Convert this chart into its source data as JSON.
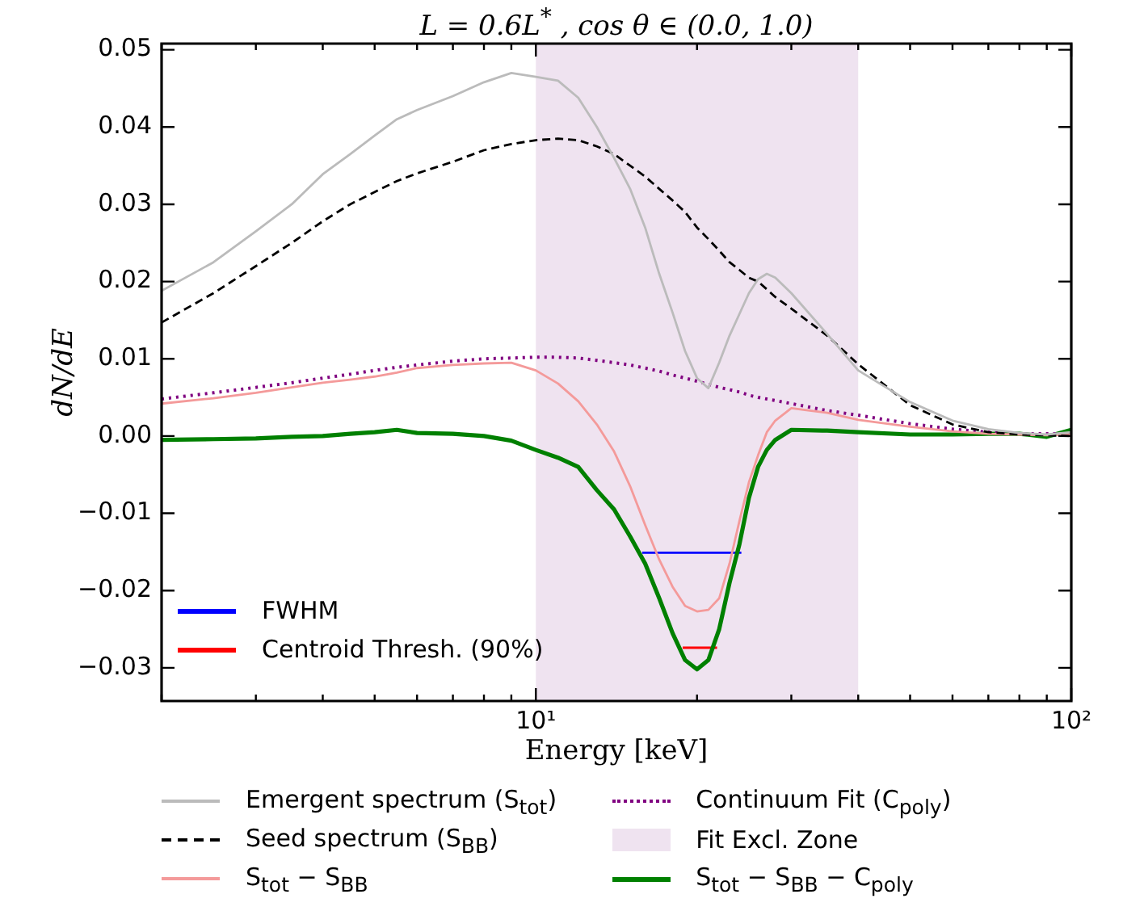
{
  "chart_data": {
    "type": "line",
    "title": "L = 0.6L$^{*}$ ,  cos θ ∈ (0.0, 1.0)",
    "xlabel": "Energy [keV]",
    "ylabel": "dN/dE",
    "log": "x",
    "grid": false,
    "legend": "bottom",
    "marker": "none",
    "xlim": [
      2,
      100
    ],
    "ylim": [
      -0.0343,
      0.0508
    ],
    "xticks": [
      {
        "value": 2,
        "label": null
      },
      {
        "value": 3,
        "label": null
      },
      {
        "value": 4,
        "label": null
      },
      {
        "value": 5,
        "label": null
      },
      {
        "value": 6,
        "label": null
      },
      {
        "value": 7,
        "label": null
      },
      {
        "value": 8,
        "label": null
      },
      {
        "value": 9,
        "label": null
      },
      {
        "value": 10,
        "label": "10¹"
      },
      {
        "value": 20,
        "label": null
      },
      {
        "value": 30,
        "label": null
      },
      {
        "value": 40,
        "label": null
      },
      {
        "value": 50,
        "label": null
      },
      {
        "value": 60,
        "label": null
      },
      {
        "value": 70,
        "label": null
      },
      {
        "value": 80,
        "label": null
      },
      {
        "value": 90,
        "label": null
      },
      {
        "value": 100,
        "label": "10²"
      }
    ],
    "yticks": [
      {
        "value": -0.03,
        "label": "−0.03"
      },
      {
        "value": -0.02,
        "label": "−0.02"
      },
      {
        "value": -0.01,
        "label": "−0.01"
      },
      {
        "value": 0,
        "label": "0.00"
      },
      {
        "value": 0.01,
        "label": "0.01"
      },
      {
        "value": 0.02,
        "label": "0.02"
      },
      {
        "value": 0.03,
        "label": "0.03"
      },
      {
        "value": 0.04,
        "label": "0.04"
      },
      {
        "value": 0.05,
        "label": "0.05"
      }
    ],
    "x": [
      2,
      2.5,
      3,
      3.5,
      4,
      4.5,
      5,
      5.5,
      6,
      7,
      8,
      9,
      10,
      11,
      12,
      13,
      14,
      15,
      16,
      17,
      18,
      19,
      20,
      21,
      22,
      23,
      24,
      25,
      26,
      27,
      28,
      30,
      35,
      40,
      50,
      60,
      70,
      80,
      90,
      100
    ],
    "bands": [
      {
        "axis": "x",
        "from": 10,
        "to": 40,
        "label": "Fit Excl. Zone",
        "color": "#efe3f0"
      }
    ],
    "series": [
      {
        "name": "Emergent spectrum (S$_{tot}$)",
        "color": "#bbbbbb",
        "line_style": "solid",
        "values": [
          0.0188,
          0.0225,
          0.0265,
          0.03,
          0.0339,
          0.0365,
          0.0389,
          0.041,
          0.0422,
          0.044,
          0.0458,
          0.047,
          0.0465,
          0.046,
          0.0438,
          0.04,
          0.036,
          0.032,
          0.027,
          0.021,
          0.016,
          0.011,
          0.0075,
          0.0062,
          0.0095,
          0.013,
          0.0158,
          0.0185,
          0.0203,
          0.021,
          0.0205,
          0.0185,
          0.0132,
          0.0085,
          0.0044,
          0.002,
          0.0009,
          0.0004,
          0.0002,
          0.0005
        ]
      },
      {
        "name": "Seed spectrum (S$_{BB}$)",
        "color": "#000000",
        "line_style": "dashed",
        "values": [
          0.0147,
          0.0185,
          0.022,
          0.025,
          0.0278,
          0.03,
          0.0316,
          0.033,
          0.034,
          0.0355,
          0.037,
          0.0378,
          0.0383,
          0.0385,
          0.0383,
          0.0375,
          0.0365,
          0.035,
          0.0336,
          0.032,
          0.0305,
          0.029,
          0.027,
          0.0255,
          0.024,
          0.0225,
          0.0215,
          0.0205,
          0.02,
          0.019,
          0.018,
          0.0165,
          0.013,
          0.0093,
          0.004,
          0.0015,
          0.0005,
          0.0002,
          0.0001,
          0
        ]
      },
      {
        "name": "S$_{tot}$ − S$_{BB}$",
        "color": "#f49a9a",
        "line_style": "solid",
        "values": [
          0.0042,
          0.0049,
          0.0056,
          0.0063,
          0.0069,
          0.0073,
          0.0077,
          0.0082,
          0.0088,
          0.0092,
          0.0094,
          0.0095,
          0.0085,
          0.0068,
          0.0045,
          0.0015,
          -0.002,
          -0.0065,
          -0.0115,
          -0.016,
          -0.0195,
          -0.022,
          -0.0227,
          -0.0225,
          -0.021,
          -0.0165,
          -0.011,
          -0.006,
          -0.0025,
          0.0005,
          0.002,
          0.0036,
          0.003,
          0.0021,
          0.0012,
          0.0006,
          0.0003,
          0.0002,
          0.0001,
          0.0002
        ]
      },
      {
        "name": "Continuum Fit (C$_{poly}$)",
        "color": "#800080",
        "line_style": "dotted",
        "values": [
          0.0048,
          0.0056,
          0.0063,
          0.0069,
          0.0075,
          0.008,
          0.0085,
          0.0089,
          0.0092,
          0.0097,
          0.01,
          0.0101,
          0.0102,
          0.0102,
          0.0101,
          0.0098,
          0.0095,
          0.0092,
          0.0088,
          0.0084,
          0.0079,
          0.0075,
          0.0071,
          0.0067,
          0.0063,
          0.006,
          0.0057,
          0.0053,
          0.005,
          0.0048,
          0.0046,
          0.0042,
          0.0033,
          0.0027,
          0.0016,
          0.0009,
          0.0005,
          0.0003,
          0.0003,
          0.0003
        ]
      },
      {
        "name": "S$_{tot}$ − S$_{BB}$ − C$_{poly}$",
        "color": "#008000",
        "line_style": "solid",
        "values": [
          -0.0005,
          -0.0004,
          -0.0003,
          -0.0001,
          0,
          0.0003,
          0.0005,
          0.0008,
          0.0004,
          0.0003,
          0,
          -0.0006,
          -0.0018,
          -0.0028,
          -0.004,
          -0.007,
          -0.0095,
          -0.013,
          -0.0165,
          -0.021,
          -0.0255,
          -0.029,
          -0.0302,
          -0.029,
          -0.025,
          -0.019,
          -0.014,
          -0.008,
          -0.004,
          -0.0018,
          -0.0005,
          0.0008,
          0.0007,
          0.0005,
          0.0002,
          0.0002,
          0.0003,
          0.0003,
          -0.0001,
          0.0008
        ]
      },
      {
        "name": "FWHM",
        "color": "#0000ff",
        "line_style": "solid",
        "x": [
          15.8,
          24.2
        ],
        "values": [
          -0.0151,
          -0.0151
        ]
      },
      {
        "name": "Centroid Thresh. (90%)",
        "color": "#ff0000",
        "line_style": "solid",
        "x": [
          18.8,
          21.8
        ],
        "values": [
          -0.0274,
          -0.0274
        ]
      }
    ]
  }
}
